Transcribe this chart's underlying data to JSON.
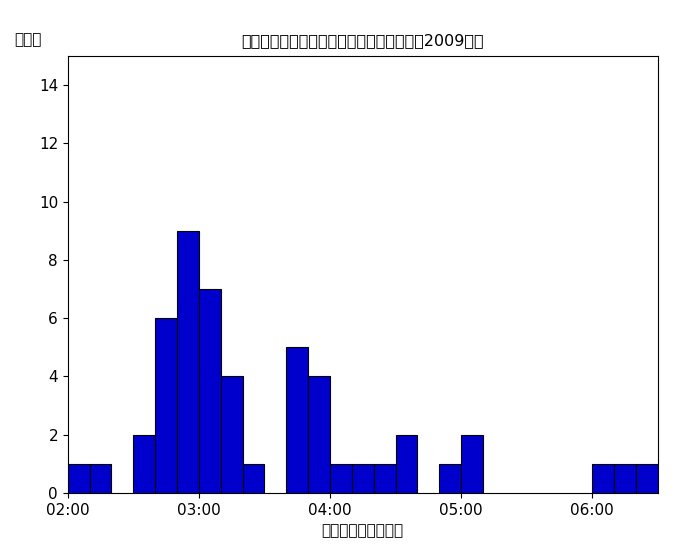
{
  "title": "パフォーマンス時間ごとの歌手数の分布（2009年）",
  "ylabel": "歌手数",
  "xlabel": "パフォーマンス時間",
  "bar_color": "#0000CC",
  "edge_color": "#000000",
  "xlim_min": 120,
  "xlim_max": 390,
  "ylim_min": 0,
  "ylim_max": 15,
  "bin_width": 10,
  "xtick_positions": [
    120,
    180,
    240,
    300,
    360
  ],
  "xtick_labels": [
    "02:00",
    "03:00",
    "04:00",
    "05:00",
    "06:00"
  ],
  "yticks": [
    0,
    2,
    4,
    6,
    8,
    10,
    12,
    14
  ],
  "bins_start": [
    120,
    130,
    150,
    160,
    170,
    180,
    190,
    200,
    220,
    230,
    240,
    250,
    260,
    270,
    280,
    290,
    300,
    310,
    360,
    370,
    380
  ],
  "counts": [
    1,
    1,
    2,
    6,
    9,
    7,
    4,
    1,
    5,
    4,
    1,
    1,
    1,
    2,
    0,
    1,
    2,
    0,
    1,
    1,
    1
  ]
}
